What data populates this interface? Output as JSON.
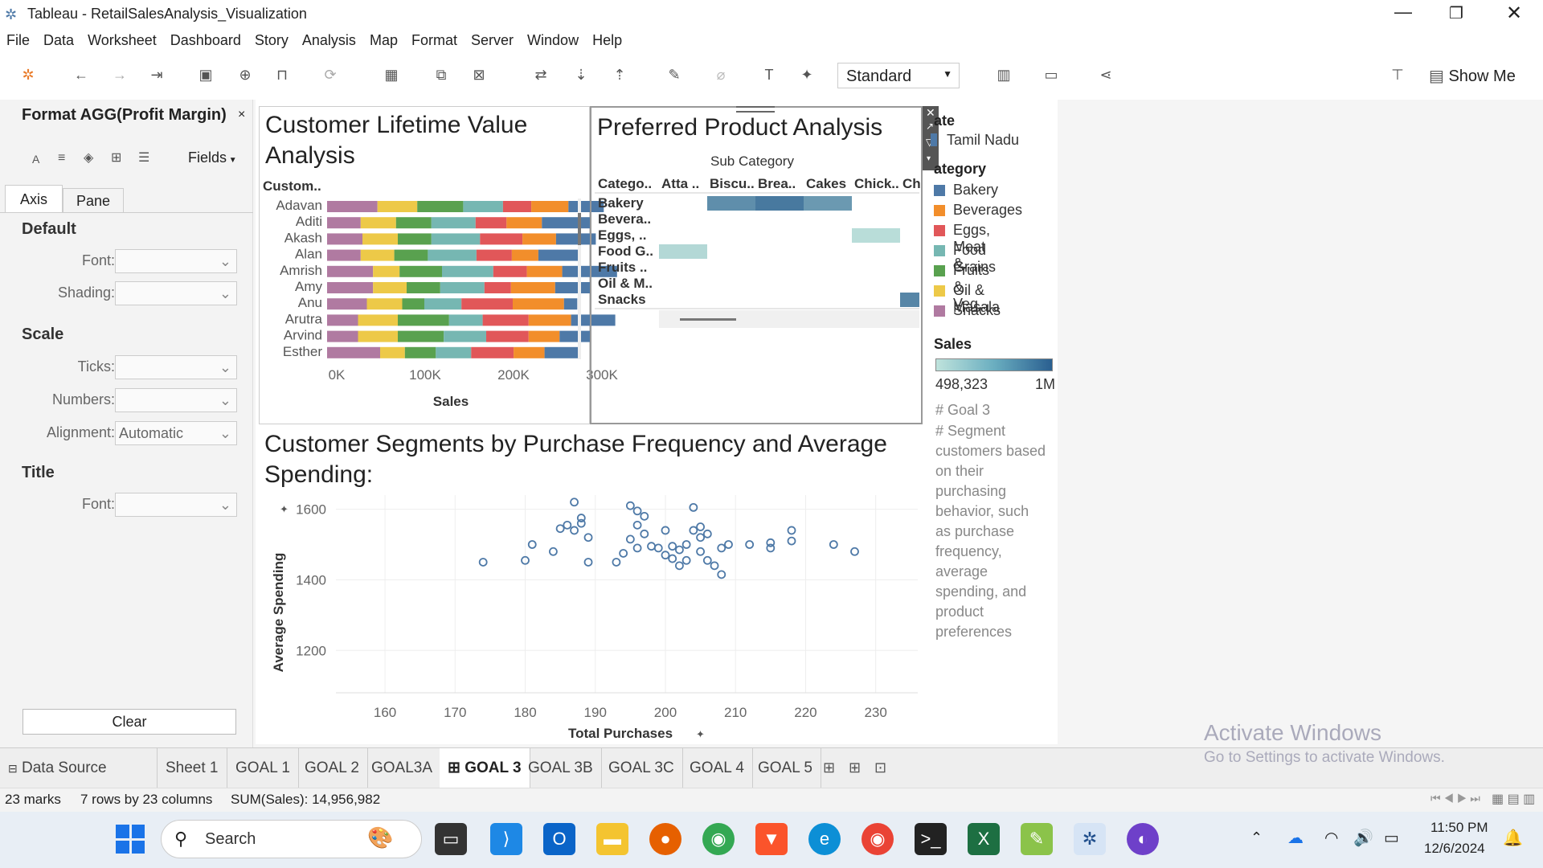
{
  "window": {
    "title": "Tableau - RetailSalesAnalysis_Visualization"
  },
  "menu": [
    "File",
    "Data",
    "Worksheet",
    "Dashboard",
    "Story",
    "Analysis",
    "Map",
    "Format",
    "Server",
    "Window",
    "Help"
  ],
  "toolbar": {
    "view_mode": "Standard",
    "show_me": "Show Me"
  },
  "format_pane": {
    "title": "Format AGG(Profit Margin)",
    "fields_label": "Fields",
    "tabs": [
      "Axis",
      "Pane"
    ],
    "sections": {
      "default": "Default",
      "scale": "Scale",
      "title": "Title"
    },
    "labels": {
      "font": "Font:",
      "shading": "Shading:",
      "ticks": "Ticks:",
      "numbers": "Numbers:",
      "alignment": "Alignment:",
      "title_font": "Font:"
    },
    "alignment_value": "Automatic",
    "clear_label": "Clear"
  },
  "clv_chart": {
    "title_line1": "Customer Lifetime Value",
    "title_line2": "Analysis",
    "row_header": "Custom..",
    "xlabel": "Sales",
    "ticks": [
      "0K",
      "100K",
      "200K",
      "300K"
    ]
  },
  "ppa_chart": {
    "title": "Preferred Product Analysis",
    "col_header": "Sub Category",
    "row_header": "Catego..",
    "columns": [
      "Atta ..",
      "Biscu..",
      "Brea..",
      "Cakes",
      "Chick..",
      "Ch"
    ]
  },
  "seg_chart": {
    "title_line1": "Customer Segments by Purchase Frequency and Average",
    "title_line2": "Spending:",
    "xlabel": "Total Purchases",
    "ylabel": "Average Spending",
    "xticks": [
      "160",
      "170",
      "180",
      "190",
      "200",
      "210",
      "220",
      "230"
    ],
    "yticks": [
      "1600",
      "1400",
      "1200"
    ]
  },
  "legend": {
    "state_title": "ate",
    "state_value": "Tamil Nadu",
    "category_title": "ategory",
    "categories": [
      {
        "name": "Bakery",
        "color": "#4e79a7"
      },
      {
        "name": "Beverages",
        "color": "#f28e2b"
      },
      {
        "name": "Eggs, Meat &..",
        "color": "#e15759"
      },
      {
        "name": "Food Grains",
        "color": "#76b7b2"
      },
      {
        "name": "Fruits & Veg..",
        "color": "#59a14f"
      },
      {
        "name": "Oil & Masala",
        "color": "#edc948"
      },
      {
        "name": "Snacks",
        "color": "#b07aa1"
      }
    ],
    "sales_title": "Sales",
    "sales_min": "498,323",
    "sales_max": "1M",
    "goal_text": "# Goal 3",
    "segment_lines": [
      "# Segment",
      "customers based",
      "on their",
      "purchasing",
      "behavior, such",
      "as purchase",
      "frequency,",
      "average",
      "spending, and",
      "product",
      "preferences"
    ]
  },
  "sheet_tabs": {
    "data_source": "Data Source",
    "tabs": [
      "Sheet 1",
      "GOAL 1",
      "GOAL 2",
      "GOAL3A",
      "GOAL 3",
      "GOAL 3B",
      "GOAL 3C",
      "GOAL 4",
      "GOAL 5"
    ],
    "active": "GOAL 3"
  },
  "status": {
    "marks": "23 marks",
    "dims": "7 rows by 23 columns",
    "sum": "SUM(Sales): 14,956,982"
  },
  "watermark": {
    "line1": "Activate Windows",
    "line2": "Go to Settings to activate Windows."
  },
  "taskbar": {
    "search": "Search",
    "time": "11:50 PM",
    "date": "12/6/2024"
  },
  "chart_data": [
    {
      "type": "bar",
      "title": "Customer Lifetime Value Analysis",
      "xlabel": "Sales",
      "ylabel": "Custom..",
      "xlim": [
        0,
        330000
      ],
      "categories": [
        "Adavan",
        "Aditi",
        "Akash",
        "Alan",
        "Amrish",
        "Amy",
        "Anu",
        "Arutra",
        "Arvind",
        "Esther"
      ],
      "stack_order": [
        "Snacks",
        "Oil & Masala",
        "Fruits & Veg..",
        "Food Grains",
        "Eggs, Meat &..",
        "Beverages",
        "Bakery"
      ],
      "series": [
        {
          "name": "Snacks",
          "values": [
            57000,
            38000,
            40000,
            38000,
            52000,
            52000,
            45000,
            35000,
            35000,
            60000
          ]
        },
        {
          "name": "Oil & Masala",
          "values": [
            45000,
            40000,
            40000,
            38000,
            30000,
            38000,
            40000,
            45000,
            45000,
            28000
          ]
        },
        {
          "name": "Fruits & Veg..",
          "values": [
            52000,
            40000,
            38000,
            38000,
            48000,
            38000,
            25000,
            58000,
            52000,
            35000
          ]
        },
        {
          "name": "Food Grains",
          "values": [
            45000,
            50000,
            55000,
            55000,
            58000,
            50000,
            42000,
            38000,
            48000,
            40000
          ]
        },
        {
          "name": "Eggs, Meat &..",
          "values": [
            32000,
            35000,
            48000,
            40000,
            38000,
            30000,
            58000,
            52000,
            48000,
            48000
          ]
        },
        {
          "name": "Beverages",
          "values": [
            42000,
            40000,
            38000,
            30000,
            40000,
            50000,
            58000,
            48000,
            35000,
            35000
          ]
        },
        {
          "name": "Bakery",
          "values": [
            40000,
            55000,
            45000,
            45000,
            62000,
            40000,
            15000,
            50000,
            35000,
            40000
          ]
        }
      ]
    },
    {
      "type": "heatmap",
      "title": "Preferred Product Analysis",
      "xlabel": "Sub Category",
      "ylabel": "Catego..",
      "columns": [
        "Atta ..",
        "Biscu..",
        "Brea..",
        "Cakes",
        "Chick..",
        "Ch"
      ],
      "rows": [
        "Bakery",
        "Bevera..",
        "Eggs, ..",
        "Food G..",
        "Fruits ..",
        "Oil & M..",
        "Snacks"
      ],
      "cells": [
        {
          "row": "Bakery",
          "col": "Biscu..",
          "value": 820000
        },
        {
          "row": "Bakery",
          "col": "Brea..",
          "value": 900000
        },
        {
          "row": "Bakery",
          "col": "Cakes",
          "value": 780000
        },
        {
          "row": "Eggs, ..",
          "col": "Chick..",
          "value": 520000
        },
        {
          "row": "Food G..",
          "col": "Atta ..",
          "value": 540000
        },
        {
          "row": "Snacks",
          "col": "Ch",
          "value": 850000
        }
      ],
      "color_range": [
        498323,
        1000000
      ]
    },
    {
      "type": "scatter",
      "title": "Customer Segments by Purchase Frequency and Average Spending:",
      "xlabel": "Total Purchases",
      "ylabel": "Average Spending",
      "xlim": [
        153,
        236
      ],
      "ylim": [
        1080,
        1640
      ],
      "points": [
        [
          174,
          1450
        ],
        [
          180,
          1455
        ],
        [
          181,
          1500
        ],
        [
          184,
          1480
        ],
        [
          185,
          1545
        ],
        [
          186,
          1555
        ],
        [
          187,
          1620
        ],
        [
          187,
          1540
        ],
        [
          188,
          1560
        ],
        [
          188,
          1575
        ],
        [
          189,
          1520
        ],
        [
          189,
          1450
        ],
        [
          193,
          1450
        ],
        [
          194,
          1475
        ],
        [
          195,
          1515
        ],
        [
          195,
          1610
        ],
        [
          196,
          1595
        ],
        [
          196,
          1490
        ],
        [
          196,
          1555
        ],
        [
          197,
          1580
        ],
        [
          197,
          1530
        ],
        [
          198,
          1495
        ],
        [
          199,
          1490
        ],
        [
          200,
          1470
        ],
        [
          200,
          1540
        ],
        [
          201,
          1460
        ],
        [
          201,
          1495
        ],
        [
          202,
          1440
        ],
        [
          202,
          1485
        ],
        [
          203,
          1455
        ],
        [
          203,
          1500
        ],
        [
          204,
          1605
        ],
        [
          204,
          1540
        ],
        [
          205,
          1520
        ],
        [
          205,
          1550
        ],
        [
          205,
          1480
        ],
        [
          206,
          1455
        ],
        [
          206,
          1530
        ],
        [
          207,
          1440
        ],
        [
          208,
          1490
        ],
        [
          208,
          1415
        ],
        [
          209,
          1500
        ],
        [
          212,
          1500
        ],
        [
          215,
          1490
        ],
        [
          215,
          1505
        ],
        [
          218,
          1510
        ],
        [
          218,
          1540
        ],
        [
          224,
          1500
        ],
        [
          227,
          1480
        ]
      ]
    }
  ]
}
